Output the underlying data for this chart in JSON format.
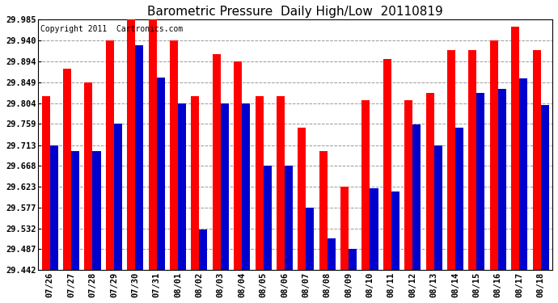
{
  "title": "Barometric Pressure  Daily High/Low  20110819",
  "copyright": "Copyright 2011  Cartronics.com",
  "dates": [
    "07/26",
    "07/27",
    "07/28",
    "07/29",
    "07/30",
    "07/31",
    "08/01",
    "08/02",
    "08/03",
    "08/04",
    "08/05",
    "08/06",
    "08/07",
    "08/08",
    "08/09",
    "08/10",
    "08/11",
    "08/12",
    "08/13",
    "08/14",
    "08/15",
    "08/16",
    "08/17",
    "08/18"
  ],
  "highs": [
    29.82,
    29.878,
    29.849,
    29.94,
    29.985,
    29.985,
    29.94,
    29.82,
    29.91,
    29.895,
    29.82,
    29.82,
    29.75,
    29.7,
    29.623,
    29.81,
    29.9,
    29.81,
    29.826,
    29.92,
    29.92,
    29.94,
    29.97,
    29.92
  ],
  "lows": [
    29.713,
    29.7,
    29.7,
    29.76,
    29.93,
    29.86,
    29.804,
    29.53,
    29.804,
    29.804,
    29.668,
    29.668,
    29.577,
    29.51,
    29.487,
    29.62,
    29.612,
    29.757,
    29.713,
    29.75,
    29.826,
    29.835,
    29.858,
    29.8
  ],
  "high_color": "#ff0000",
  "low_color": "#0000cc",
  "bg_color": "#ffffff",
  "plot_bg_color": "#ffffff",
  "grid_color": "#999999",
  "yticks": [
    29.442,
    29.487,
    29.532,
    29.577,
    29.623,
    29.668,
    29.713,
    29.759,
    29.804,
    29.849,
    29.894,
    29.94,
    29.985
  ],
  "ymin": 29.442,
  "ymax": 29.985,
  "title_fontsize": 11,
  "copyright_fontsize": 7,
  "tick_fontsize": 7.5,
  "bar_width": 0.38
}
